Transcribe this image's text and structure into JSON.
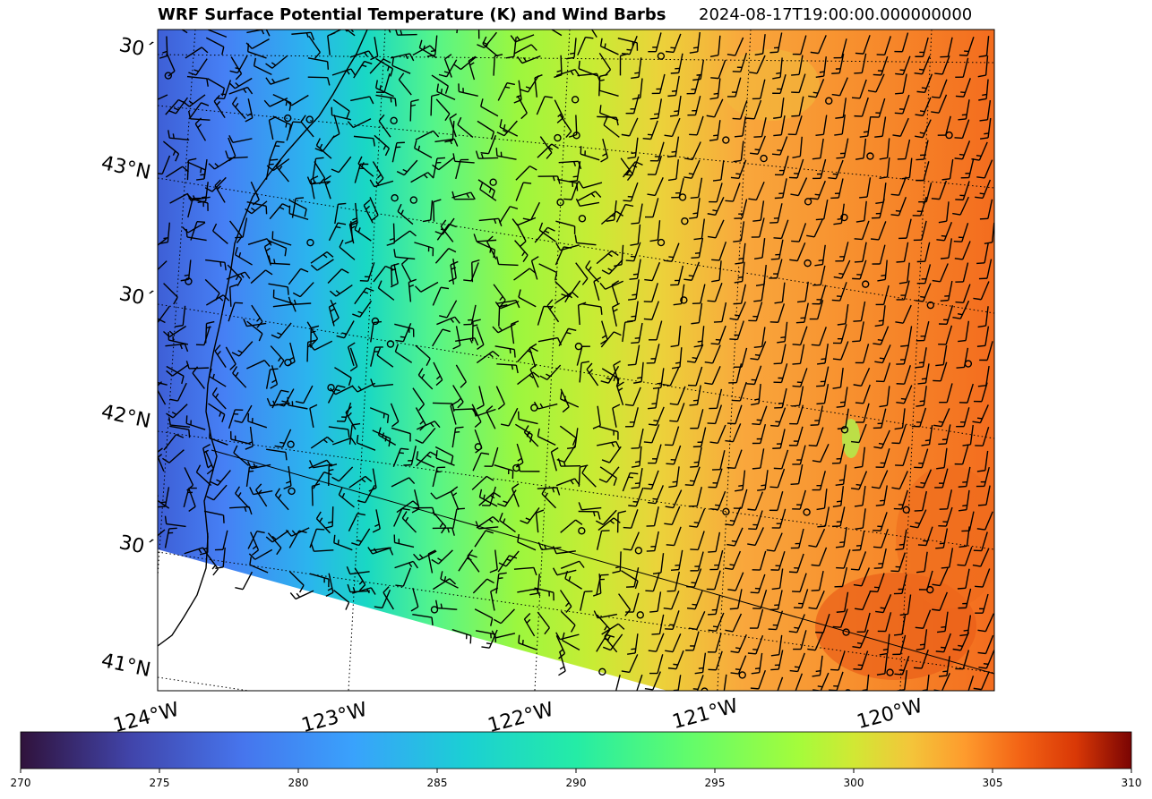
{
  "map": {
    "title": "WRF Surface Potential Temperature (K) and Wind Barbs",
    "valid_time": "2024-08-17T19:00:00.000000000",
    "lat_labels": [
      "30´",
      "43°N",
      "30´",
      "42°N",
      "30´",
      "41°N"
    ],
    "lon_labels": [
      "124°W",
      "123°W",
      "122°W",
      "121°W",
      "120°W"
    ],
    "colorbar": {
      "colormap": "turbo",
      "min": 270,
      "max": 310,
      "tick_labels": [
        "270",
        "275",
        "280",
        "285",
        "290",
        "295",
        "300",
        "305",
        "310"
      ]
    }
  }
}
